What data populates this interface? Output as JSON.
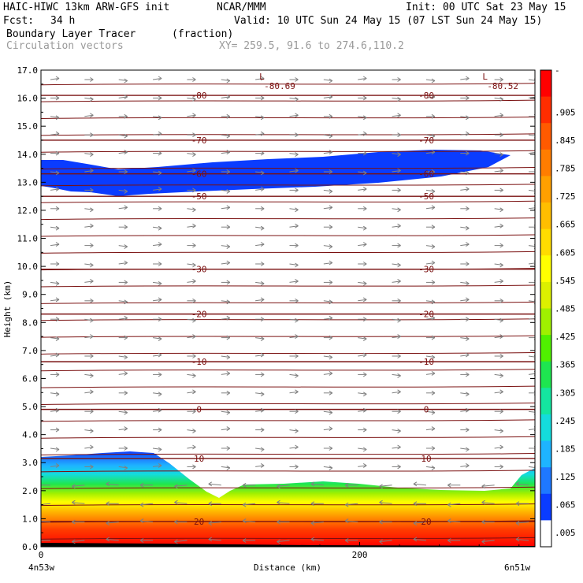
{
  "header": {
    "title": "HAIC-HIWC 13km ARW-GFS init",
    "org": "NCAR/MMM",
    "init": "Init: 00 UTC Sat 23 May 15",
    "fcst_label": "Fcst:",
    "fcst_value": "34 h",
    "valid": "Valid: 10 UTC Sun 24 May 15 (07 LST Sun 24 May 15)",
    "field_name": "Boundary Layer Tracer",
    "field_units": "(fraction)",
    "vector_label": "Circulation vectors",
    "xy_range": "XY= 259.5, 91.6 to 274.6,110.2"
  },
  "colors": {
    "contour": "#7a1010",
    "vector": "#808080",
    "colorbar": [
      "#ffffff",
      "#0a3cff",
      "#1e78ff",
      "#1eb4ff",
      "#14dcdc",
      "#14e6a0",
      "#1ee650",
      "#50f000",
      "#a0f000",
      "#dcf000",
      "#ffff00",
      "#ffdc00",
      "#ffbe00",
      "#ffa000",
      "#ff7d00",
      "#ff5a00",
      "#ff2d00",
      "#ff0000"
    ]
  },
  "chart_data": {
    "type": "heatmap",
    "description": "Vertical cross-section of boundary layer tracer with temperature contours and circulation vectors",
    "xlabel": "Distance (km)",
    "ylabel": "Height (km)",
    "xlim": [
      0,
      310
    ],
    "ylim": [
      0,
      17
    ],
    "x_ticks": [
      {
        "value": 0,
        "label": "0"
      },
      {
        "value": 200,
        "label": "200"
      }
    ],
    "x_endpoints": {
      "left": "4n53w",
      "right": "6n51w"
    },
    "y_ticks": [
      "0.0",
      "1.0",
      "2.0",
      "3.0",
      "4.0",
      "5.0",
      "6.0",
      "7.0",
      "8.0",
      "9.0",
      "10.0",
      "11.0",
      "12.0",
      "13.0",
      "14.0",
      "15.0",
      "16.0",
      "17.0"
    ],
    "colorbar_labels": [
      "-",
      ".905",
      ".845",
      ".785",
      ".725",
      ".665",
      ".605",
      ".545",
      ".485",
      ".425",
      ".365",
      ".305",
      ".245",
      ".185",
      ".125",
      ".065",
      ".005"
    ],
    "temperature_contours": [
      {
        "level": 20,
        "height_km": 0.9,
        "label": "20"
      },
      {
        "level": 10,
        "height_km": 3.15,
        "label": "10"
      },
      {
        "level": 0,
        "height_km": 4.9,
        "label": "0"
      },
      {
        "level": -10,
        "height_km": 6.6,
        "label": "-10"
      },
      {
        "level": -20,
        "height_km": 8.3,
        "label": "-20"
      },
      {
        "level": -30,
        "height_km": 9.9,
        "label": "-30"
      },
      {
        "level": -50,
        "height_km": 12.5,
        "label": "-50"
      },
      {
        "level": -60,
        "height_km": 13.3,
        "label": "-60"
      },
      {
        "level": -70,
        "height_km": 14.5,
        "label": "-70"
      },
      {
        "level": -80,
        "height_km": 16.1,
        "label": "-80"
      }
    ],
    "minima": [
      {
        "x_km": 140,
        "height_km": 16.6,
        "label": "L",
        "value": "-80.69"
      },
      {
        "x_km": 280,
        "height_km": 16.6,
        "label": "L",
        "value": "-80.52"
      }
    ]
  }
}
